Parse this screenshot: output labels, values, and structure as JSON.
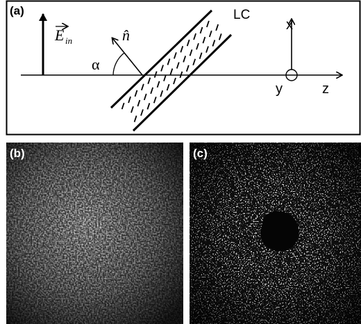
{
  "panels": {
    "a": {
      "label": "(a)",
      "lc": "LC",
      "x": "x",
      "y": "y",
      "z": "z",
      "alpha": "α",
      "n": "n̂",
      "e": "E",
      "e_sub": "in"
    },
    "b": {
      "label": "(b)"
    },
    "c": {
      "label": "(c)"
    }
  }
}
